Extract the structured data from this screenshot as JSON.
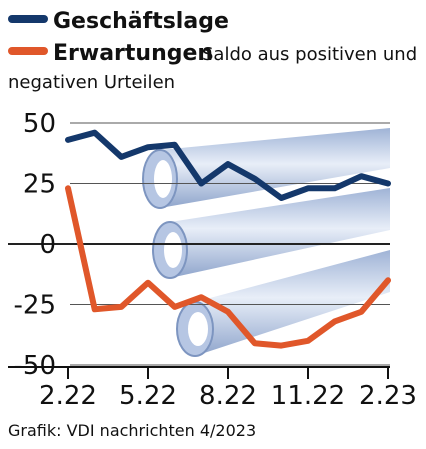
{
  "chart_data": {
    "type": "line",
    "title": "",
    "xlabel": "",
    "ylabel": "",
    "ylim": [
      -50,
      50
    ],
    "yticks": [
      "50",
      "25",
      "0",
      "-25",
      "-50"
    ],
    "xticks": [
      "2.22",
      "5.22",
      "8.22",
      "11.22",
      "2.23"
    ],
    "grid": "horizontal",
    "legend_position": "top-left",
    "note": "Saldo aus positiven und negativen Urteilen",
    "source": "Grafik: VDI nachrichten 4/2023",
    "x": [
      "2.22",
      "3.22",
      "4.22",
      "5.22",
      "6.22",
      "7.22",
      "8.22",
      "9.22",
      "10.22",
      "11.22",
      "12.22",
      "1.23",
      "2.23"
    ],
    "series": [
      {
        "name": "Geschäftslage",
        "color": "#14386b",
        "values": [
          43,
          46,
          36,
          40,
          41,
          25,
          33,
          27,
          19,
          23,
          23,
          28,
          25
        ]
      },
      {
        "name": "Erwartungen",
        "color": "#e0572a",
        "values": [
          23,
          -27,
          -26,
          -16,
          -26,
          -22,
          -28,
          -41,
          -42,
          -40,
          -32,
          -28,
          -15
        ]
      }
    ]
  }
}
